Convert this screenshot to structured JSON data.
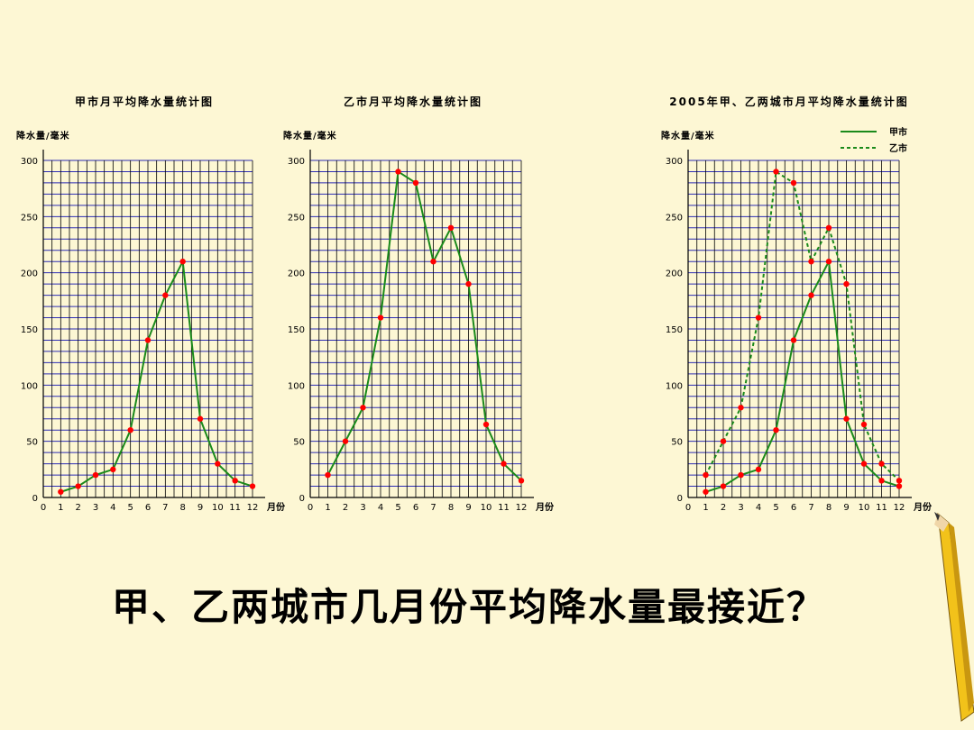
{
  "question": "甲、乙两城市几月份平均降水量最接近？",
  "colors": {
    "background": "#fdf7d4",
    "line": "#1a8a1a",
    "point": "#ff0000",
    "grid_h": "#2d2db4",
    "grid_v": "#000000"
  },
  "chart_data": [
    {
      "type": "line",
      "title": "甲市月平均降水量统计图",
      "ylabel": "降水量/毫米",
      "xlabel": "月份",
      "x": [
        1,
        2,
        3,
        4,
        5,
        6,
        7,
        8,
        9,
        10,
        11,
        12
      ],
      "x_ticks": [
        "0",
        "1",
        "2",
        "3",
        "4",
        "5",
        "6",
        "7",
        "8",
        "9",
        "10",
        "11",
        "12"
      ],
      "y_ticks": [
        "0",
        "50",
        "100",
        "150",
        "200",
        "250",
        "300"
      ],
      "ylim": [
        0,
        300
      ],
      "grid": true,
      "series": [
        {
          "values": [
            5,
            10,
            20,
            25,
            60,
            140,
            180,
            210,
            70,
            30,
            15,
            10
          ],
          "style": "solid"
        }
      ]
    },
    {
      "type": "line",
      "title": "乙市月平均降水量统计图",
      "ylabel": "降水量/毫米",
      "xlabel": "月份",
      "x": [
        1,
        2,
        3,
        4,
        5,
        6,
        7,
        8,
        9,
        10,
        11,
        12
      ],
      "x_ticks": [
        "0",
        "1",
        "2",
        "3",
        "4",
        "5",
        "6",
        "7",
        "8",
        "9",
        "10",
        "11",
        "12"
      ],
      "y_ticks": [
        "0",
        "50",
        "100",
        "150",
        "200",
        "250",
        "300"
      ],
      "ylim": [
        0,
        300
      ],
      "grid": true,
      "series": [
        {
          "values": [
            20,
            50,
            80,
            160,
            290,
            280,
            210,
            240,
            190,
            65,
            30,
            15
          ],
          "style": "solid"
        }
      ]
    },
    {
      "type": "line",
      "title": "2005年甲、乙两城市月平均降水量统计图",
      "ylabel": "降水量/毫米",
      "xlabel": "月份",
      "x": [
        1,
        2,
        3,
        4,
        5,
        6,
        7,
        8,
        9,
        10,
        11,
        12
      ],
      "x_ticks": [
        "0",
        "1",
        "2",
        "3",
        "4",
        "5",
        "6",
        "7",
        "8",
        "9",
        "10",
        "11",
        "12"
      ],
      "y_ticks": [
        "0",
        "50",
        "100",
        "150",
        "200",
        "250",
        "300"
      ],
      "ylim": [
        0,
        300
      ],
      "grid": true,
      "legend_position": "top-right",
      "series": [
        {
          "name": "甲市",
          "values": [
            5,
            10,
            20,
            25,
            60,
            140,
            180,
            210,
            70,
            30,
            15,
            10
          ],
          "style": "solid"
        },
        {
          "name": "乙市",
          "values": [
            20,
            50,
            80,
            160,
            290,
            280,
            210,
            240,
            190,
            65,
            30,
            15
          ],
          "style": "dashed"
        }
      ]
    }
  ]
}
